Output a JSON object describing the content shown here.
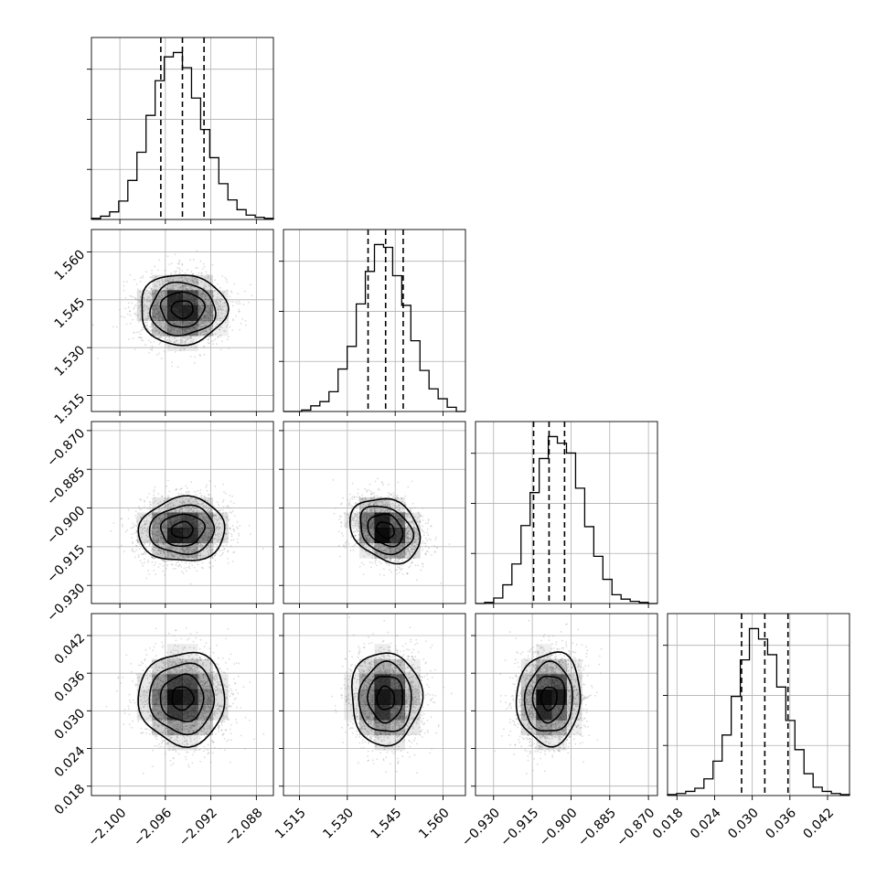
{
  "chart_data": {
    "type": "corner",
    "grid": true,
    "parameters": [
      {
        "mean": -2.0945,
        "std": 0.0019,
        "range": [
          -2.1025,
          -2.0865
        ],
        "ticks": [
          -2.1,
          -2.096,
          -2.092,
          -2.088
        ],
        "tick_labels": [
          "−2.100",
          "−2.096",
          "−2.092",
          "−2.088"
        ],
        "quantiles": [
          -2.0964,
          -2.0945,
          -2.0926
        ]
      },
      {
        "mean": 1.542,
        "std": 0.0055,
        "range": [
          1.51,
          1.567
        ],
        "ticks": [
          1.515,
          1.53,
          1.545,
          1.56
        ],
        "tick_labels": [
          "1.515",
          "1.530",
          "1.545",
          "1.560"
        ],
        "quantiles": [
          1.5365,
          1.542,
          1.5475
        ]
      },
      {
        "mean": -0.9085,
        "std": 0.0062,
        "range": [
          -0.937,
          -0.8665
        ],
        "ticks": [
          -0.93,
          -0.915,
          -0.9,
          -0.885,
          -0.87
        ],
        "tick_labels": [
          "−0.930",
          "−0.915",
          "−0.900",
          "−0.885",
          "−0.870"
        ],
        "quantiles": [
          -0.9145,
          -0.9085,
          -0.9025
        ]
      },
      {
        "mean": 0.032,
        "std": 0.0037,
        "range": [
          0.0165,
          0.0455
        ],
        "ticks": [
          0.018,
          0.024,
          0.03,
          0.036,
          0.042
        ],
        "tick_labels": [
          "0.018",
          "0.024",
          "0.030",
          "0.036",
          "0.042"
        ],
        "quantiles": [
          0.0283,
          0.032,
          0.0357
        ]
      }
    ],
    "histograms": [
      {
        "bins": 20,
        "counts": [
          1,
          3,
          7,
          17,
          36,
          62,
          96,
          128,
          150,
          154,
          140,
          112,
          83,
          57,
          33,
          18,
          9,
          4,
          2,
          1
        ]
      },
      {
        "bins": 20,
        "counts": [
          0,
          0,
          1,
          4,
          7,
          14,
          30,
          46,
          76,
          99,
          118,
          116,
          96,
          75,
          50,
          29,
          16,
          9,
          3,
          0
        ]
      },
      {
        "bins": 20,
        "counts": [
          0,
          1,
          5,
          17,
          36,
          71,
          101,
          132,
          152,
          146,
          137,
          105,
          70,
          43,
          22,
          8,
          4,
          2,
          1,
          0
        ]
      },
      {
        "bins": 20,
        "counts": [
          1,
          2,
          4,
          7,
          16,
          33,
          58,
          95,
          130,
          160,
          150,
          135,
          104,
          72,
          44,
          21,
          8,
          4,
          2,
          1
        ]
      }
    ],
    "correlations": {
      "1-0": 0.0,
      "2-0": 0.05,
      "2-1": -0.25,
      "3-0": 0.0,
      "3-1": 0.0,
      "3-2": 0.05
    },
    "contour_sigmas": [
      0.5,
      1.0,
      1.5,
      2.0
    ],
    "n_samples_scatter": 2200
  },
  "colors": {
    "frame": "#000000",
    "grid": "#b0b0b0",
    "scatter": "#9a9a9a",
    "density": "#000000"
  }
}
